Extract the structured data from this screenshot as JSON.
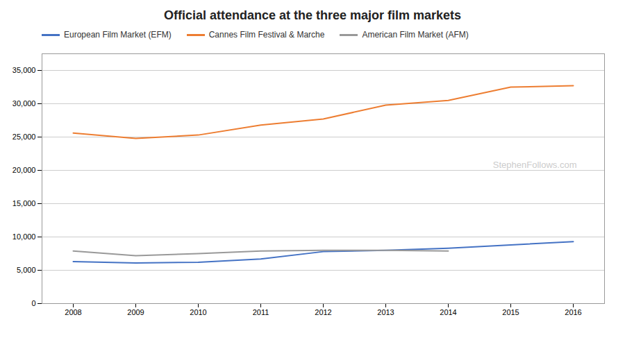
{
  "chart_data": {
    "type": "line",
    "title": "Official attendance at the three major film markets",
    "x": [
      2008,
      2009,
      2010,
      2011,
      2012,
      2013,
      2014,
      2015,
      2016
    ],
    "series": [
      {
        "name": "European Film Market (EFM)",
        "color": "#4472C4",
        "values": [
          6300,
          6100,
          6200,
          6700,
          7800,
          8000,
          8300,
          8800,
          9300
        ]
      },
      {
        "name": "Cannes Film Festival & Marche",
        "color": "#ED7D31",
        "values": [
          25600,
          24800,
          25300,
          26800,
          27700,
          29800,
          30500,
          32500,
          32700
        ]
      },
      {
        "name": "American Film Market (AFM)",
        "color": "#999999",
        "values": [
          7900,
          7200,
          7500,
          7900,
          8000,
          8000,
          7900,
          null,
          null
        ]
      }
    ],
    "xlim": [
      2007.5,
      2016.5
    ],
    "xticks": [
      2008,
      2009,
      2010,
      2011,
      2012,
      2013,
      2014,
      2015,
      2016
    ],
    "ylim": [
      0,
      37500
    ],
    "yticks": [
      0,
      {
        "value": 5000,
        "label": "5,000"
      },
      {
        "value": 10000,
        "label": "10,000"
      },
      {
        "value": 15000,
        "label": "15,000"
      },
      {
        "value": 20000,
        "label": "20,000"
      },
      {
        "value": 25000,
        "label": "25,000"
      },
      {
        "value": 30000,
        "label": "30,000"
      },
      {
        "value": 35000,
        "label": "35,000"
      }
    ],
    "grid": true,
    "legend": "top",
    "annotations": [
      {
        "text": "StephenFollows.com"
      }
    ]
  }
}
